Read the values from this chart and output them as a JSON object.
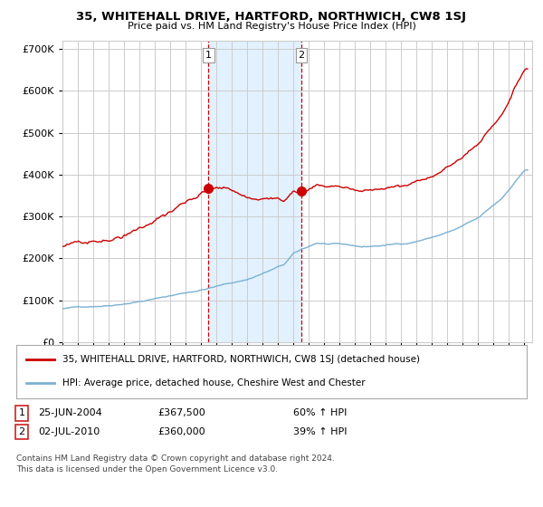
{
  "title": "35, WHITEHALL DRIVE, HARTFORD, NORTHWICH, CW8 1SJ",
  "subtitle": "Price paid vs. HM Land Registry's House Price Index (HPI)",
  "red_label": "35, WHITEHALL DRIVE, HARTFORD, NORTHWICH, CW8 1SJ (detached house)",
  "blue_label": "HPI: Average price, detached house, Cheshire West and Chester",
  "sale1_date": "25-JUN-2004",
  "sale1_price": 367500,
  "sale1_hpi": "60% ↑ HPI",
  "sale2_date": "02-JUL-2010",
  "sale2_price": 360000,
  "sale2_hpi": "39% ↑ HPI",
  "footer": "Contains HM Land Registry data © Crown copyright and database right 2024.\nThis data is licensed under the Open Government Licence v3.0.",
  "ylim": [
    0,
    700000
  ],
  "yticks": [
    0,
    100000,
    200000,
    300000,
    400000,
    500000,
    600000,
    700000
  ],
  "xlim_start": 1995.0,
  "xlim_end": 2025.5,
  "sale1_x": 2004.48,
  "sale2_x": 2010.51,
  "shade_color": "#ddeeff",
  "grid_color": "#cccccc",
  "red_color": "#cc0000",
  "blue_color": "#7ab0d4"
}
